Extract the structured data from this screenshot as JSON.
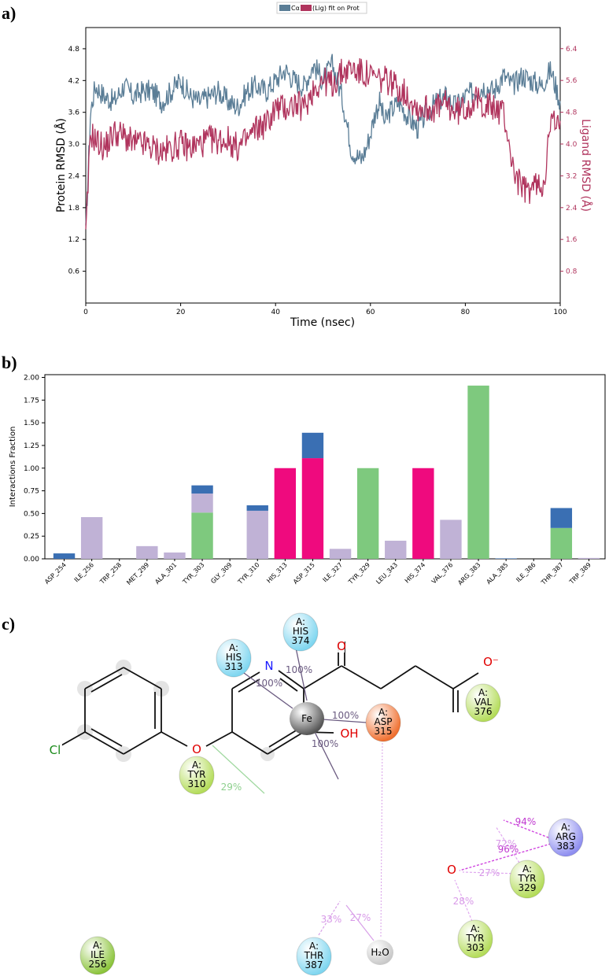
{
  "labels": {
    "a": "a)",
    "b": "b)",
    "c": "c)"
  },
  "chart_data": [
    {
      "type": "line",
      "legend": {
        "entries": [
          "Cα",
          "(Lig) fit on Prot"
        ],
        "placement": "top-center"
      },
      "xlabel": "Time (nsec)",
      "ylabel_left": "Protein RMSD (Å)",
      "ylabel_right": "Ligand RMSD (Å)",
      "xlim": [
        0,
        100
      ],
      "ylim_left": [
        0,
        5.2
      ],
      "ylim_right": [
        0,
        6.93
      ],
      "x_ticks": [
        "0",
        "20",
        "40",
        "60",
        "80",
        "100"
      ],
      "y_ticks_left": [
        "0.6",
        "1.2",
        "1.8",
        "2.4",
        "3.0",
        "3.6",
        "4.2",
        "4.8"
      ],
      "y_ticks_right": [
        "0.8",
        "1.6",
        "2.4",
        "3.2",
        "4.0",
        "4.8",
        "5.6",
        "6.4"
      ],
      "colors": {
        "protein": "#5a7d96",
        "ligand": "#b0345d"
      },
      "series": [
        {
          "axis": "left",
          "x": [
            0,
            1,
            2,
            4,
            6,
            8,
            10,
            12,
            14,
            16,
            18,
            20,
            22,
            24,
            26,
            28,
            30,
            32,
            34,
            36,
            38,
            40,
            42,
            44,
            46,
            48,
            50,
            52,
            54,
            55,
            56,
            57,
            58,
            59,
            60,
            61,
            62,
            63,
            64,
            66,
            68,
            70,
            72,
            74,
            76,
            78,
            80,
            82,
            84,
            86,
            88,
            90,
            92,
            94,
            96,
            98,
            100
          ],
          "y": [
            1.3,
            3.6,
            4.1,
            3.9,
            3.8,
            4.1,
            3.9,
            4.0,
            4.0,
            3.8,
            4.0,
            4.2,
            3.9,
            3.8,
            3.9,
            4.0,
            3.8,
            3.7,
            4.0,
            4.1,
            4.0,
            4.2,
            4.4,
            4.2,
            4.1,
            4.5,
            4.2,
            4.5,
            3.9,
            3.4,
            2.9,
            2.8,
            2.7,
            2.9,
            3.2,
            3.6,
            3.8,
            3.4,
            3.6,
            3.8,
            3.5,
            3.3,
            3.6,
            3.8,
            3.9,
            3.7,
            3.9,
            4.0,
            4.1,
            4.0,
            4.3,
            4.1,
            4.3,
            4.2,
            4.1,
            4.4,
            3.8
          ]
        },
        {
          "axis": "right",
          "x": [
            0,
            1,
            2,
            4,
            6,
            8,
            10,
            12,
            14,
            16,
            18,
            20,
            22,
            24,
            26,
            28,
            30,
            32,
            34,
            36,
            38,
            40,
            42,
            44,
            46,
            48,
            50,
            52,
            54,
            56,
            58,
            60,
            62,
            64,
            66,
            68,
            70,
            72,
            74,
            76,
            78,
            80,
            82,
            84,
            86,
            88,
            89,
            90,
            91,
            92,
            93,
            94,
            95,
            96,
            97,
            98,
            99,
            100
          ],
          "y": [
            1.6,
            4.3,
            4.1,
            3.9,
            4.3,
            4.2,
            4.0,
            4.0,
            3.9,
            3.8,
            3.9,
            4.0,
            3.9,
            4.0,
            4.1,
            4.1,
            4.1,
            3.9,
            4.1,
            4.4,
            4.5,
            4.9,
            4.9,
            5.0,
            4.9,
            5.4,
            5.6,
            5.5,
            5.8,
            5.9,
            5.8,
            5.7,
            5.6,
            5.6,
            5.4,
            5.2,
            4.9,
            4.9,
            4.9,
            5.0,
            4.8,
            4.9,
            5.1,
            5.0,
            4.9,
            4.8,
            4.2,
            3.4,
            3.1,
            2.9,
            2.8,
            2.9,
            3.0,
            2.9,
            3.4,
            4.6,
            4.5,
            4.3
          ]
        }
      ]
    },
    {
      "type": "bar",
      "stacked": true,
      "ylabel": "Interactions Fraction",
      "ylim": [
        0,
        2.0
      ],
      "y_ticks": [
        "0.00",
        "0.25",
        "0.50",
        "0.75",
        "1.00",
        "1.25",
        "1.50",
        "1.75",
        "2.00"
      ],
      "categories": [
        "ASP_254",
        "ILE_256",
        "TRP_258",
        "MET_299",
        "ALA_301",
        "TYR_303",
        "GLY_309",
        "TYR_310",
        "HIS_313",
        "ASP_315",
        "ILE_327",
        "TYR_329",
        "LEU_343",
        "HIS_374",
        "VAL_376",
        "ARG_383",
        "ALA_385",
        "ILE_386",
        "THR_387",
        "TRP_389"
      ],
      "colors": {
        "hbond": "#7ec97e",
        "hydrophobic": "#c0b2d6",
        "ionic": "#ef0a7e",
        "water_bridge": "#3a6fb3"
      },
      "series": [
        {
          "key": "hbond",
          "values": [
            0,
            0,
            0,
            0,
            0,
            0.51,
            0,
            0,
            0,
            0,
            0,
            1.0,
            0,
            0,
            0,
            1.91,
            0,
            0,
            0.34,
            0
          ]
        },
        {
          "key": "hydrophobic",
          "values": [
            0,
            0.46,
            0,
            0.14,
            0.07,
            0.21,
            0,
            0.53,
            0,
            0,
            0.11,
            0,
            0.2,
            0,
            0.43,
            0,
            0,
            0,
            0,
            0.01
          ]
        },
        {
          "key": "ionic",
          "values": [
            0,
            0,
            0,
            0,
            0,
            0,
            0,
            0,
            1.0,
            1.11,
            0,
            0,
            0,
            1.0,
            0,
            0,
            0,
            0,
            0,
            0
          ]
        },
        {
          "key": "water_bridge",
          "values": [
            0.06,
            0,
            0,
            0,
            0,
            0.09,
            0,
            0.06,
            0,
            0.28,
            0,
            0,
            0,
            0,
            0,
            0,
            0.005,
            0,
            0.22,
            0
          ]
        }
      ]
    }
  ],
  "diagram": {
    "residues": [
      {
        "id": "his374",
        "chain": "A:",
        "name": "HIS",
        "num": "374",
        "color": "#7fd6f0"
      },
      {
        "id": "his313",
        "chain": "A:",
        "name": "HIS",
        "num": "313",
        "color": "#7fd6f0"
      },
      {
        "id": "val376",
        "chain": "A:",
        "name": "VAL",
        "num": "376",
        "color": "#b4dc5a"
      },
      {
        "id": "asp315",
        "chain": "A:",
        "name": "ASP",
        "num": "315",
        "color": "#f07030"
      },
      {
        "id": "tyr310",
        "chain": "A:",
        "name": "TYR",
        "num": "310",
        "color": "#b4dc5a"
      },
      {
        "id": "arg383",
        "chain": "A:",
        "name": "ARG",
        "num": "383",
        "color": "#8e8ef0"
      },
      {
        "id": "tyr329",
        "chain": "A:",
        "name": "TYR",
        "num": "329",
        "color": "#b4dc5a"
      },
      {
        "id": "tyr303",
        "chain": "A:",
        "name": "TYR",
        "num": "303",
        "color": "#b4dc5a"
      },
      {
        "id": "ile256",
        "chain": "A:",
        "name": "ILE",
        "num": "256",
        "color": "#8cc43c"
      },
      {
        "id": "thr387",
        "chain": "A:",
        "name": "THR",
        "num": "387",
        "color": "#7fd6f0"
      }
    ],
    "metal": "Fe",
    "water": "H₂O",
    "atoms": {
      "n": "N",
      "o_top": "O",
      "o_minus": "O⁻",
      "o_acid": "O",
      "oh": "OH",
      "o_ether": "O",
      "cl": "Cl"
    },
    "percentages": {
      "his313_fe": "100%",
      "his374_fe": "100%",
      "fe_asp315": "100%",
      "fe_o": "100%",
      "tyr310": "29%",
      "arg383_ominus": "94%",
      "arg383_o": "96%",
      "tyr329": "27%",
      "tyr303": "28%",
      "thr387": "33%",
      "water": "27%",
      "hidden": "72%"
    }
  }
}
